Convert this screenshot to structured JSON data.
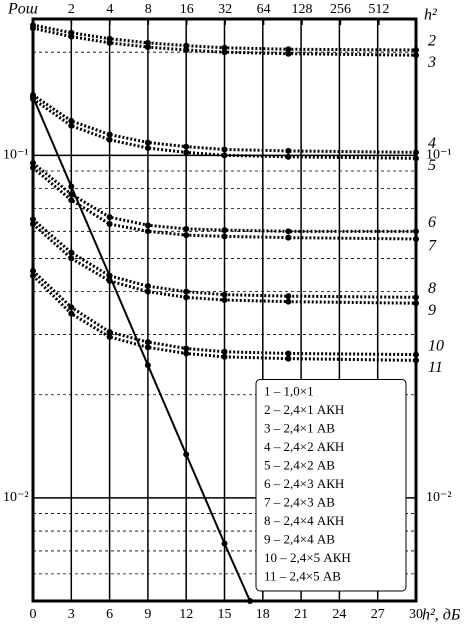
{
  "chart_data": {
    "type": "line",
    "ylabel": "Pош",
    "xlabel": "h², дБ",
    "x2label": "h²",
    "x": [
      0,
      3,
      6,
      9,
      12,
      15,
      20,
      30
    ],
    "xlim": [
      0,
      30
    ],
    "xticks": [
      0,
      3,
      6,
      9,
      12,
      15,
      18,
      21,
      24,
      27,
      30
    ],
    "x2lim": [
      1,
      1000
    ],
    "x2log": true,
    "x2ticks": [
      2,
      4,
      8,
      16,
      32,
      64,
      128,
      256,
      512
    ],
    "ylim": [
      0.005,
      0.25
    ],
    "ylog": true,
    "yticks": [
      {
        "value": 0.1,
        "label": "10⁻¹"
      },
      {
        "value": 0.01,
        "label": "10⁻²"
      }
    ],
    "yminorticks": [
      0.2,
      0.09,
      0.08,
      0.07,
      0.06,
      0.05,
      0.04,
      0.03,
      0.02,
      0.009,
      0.008,
      0.007,
      0.006
    ],
    "grid": true,
    "legend": "lower right",
    "series": [
      {
        "name": "1 – 1,0×1",
        "label": "1",
        "color": "#000",
        "style": "solid",
        "x": [
          0,
          3,
          6,
          9,
          12,
          15,
          17
        ],
        "values": [
          0.148,
          0.0811,
          0.0445,
          0.0244,
          0.0134,
          0.00736,
          0.005
        ]
      },
      {
        "name": "2 – 2,4×1 АКН",
        "label": "2",
        "color": "#000",
        "style": "dotted",
        "values": [
          0.24,
          0.228,
          0.219,
          0.213,
          0.209,
          0.206,
          0.204,
          0.203
        ]
      },
      {
        "name": "3 – 2,4×1 АВ",
        "label": "3",
        "color": "#000",
        "style": "dotted",
        "values": [
          0.235,
          0.222,
          0.213,
          0.207,
          0.203,
          0.2,
          0.198,
          0.196
        ]
      },
      {
        "name": "4 – 2,4×2 АКН",
        "label": "4",
        "color": "#000",
        "style": "dotted",
        "values": [
          0.15,
          0.126,
          0.115,
          0.109,
          0.106,
          0.104,
          0.103,
          0.102
        ]
      },
      {
        "name": "5 – 2,4×2 АВ",
        "label": "5",
        "color": "#000",
        "style": "dotted",
        "values": [
          0.146,
          0.122,
          0.111,
          0.105,
          0.102,
          0.1,
          0.099,
          0.098
        ]
      },
      {
        "name": "6 – 2,4×3 АКН",
        "label": "6",
        "color": "#000",
        "style": "dotted",
        "values": [
          0.095,
          0.077,
          0.066,
          0.0625,
          0.061,
          0.0605,
          0.06,
          0.06
        ]
      },
      {
        "name": "7 – 2,4×3 АВ",
        "label": "7",
        "color": "#000",
        "style": "dotted",
        "values": [
          0.092,
          0.074,
          0.063,
          0.06,
          0.0585,
          0.058,
          0.0575,
          0.057
        ]
      },
      {
        "name": "8 – 2,4×4 АКН",
        "label": "8",
        "color": "#000",
        "style": "dotted",
        "values": [
          0.065,
          0.052,
          0.0445,
          0.0415,
          0.04,
          0.0392,
          0.0388,
          0.0385
        ]
      },
      {
        "name": "9 – 2,4×4 АВ",
        "label": "9",
        "color": "#000",
        "style": "dotted",
        "values": [
          0.063,
          0.05,
          0.043,
          0.04,
          0.0385,
          0.0378,
          0.0374,
          0.037
        ]
      },
      {
        "name": "10 – 2,4×5 АКН",
        "label": "10",
        "color": "#000",
        "style": "dotted",
        "values": [
          0.046,
          0.036,
          0.0305,
          0.0285,
          0.0273,
          0.0267,
          0.0264,
          0.0262
        ]
      },
      {
        "name": "11 – 2,4×5 АВ",
        "label": "11",
        "color": "#000",
        "style": "dotted",
        "values": [
          0.0445,
          0.0345,
          0.0295,
          0.0275,
          0.0264,
          0.0258,
          0.0255,
          0.0252
        ]
      }
    ]
  }
}
